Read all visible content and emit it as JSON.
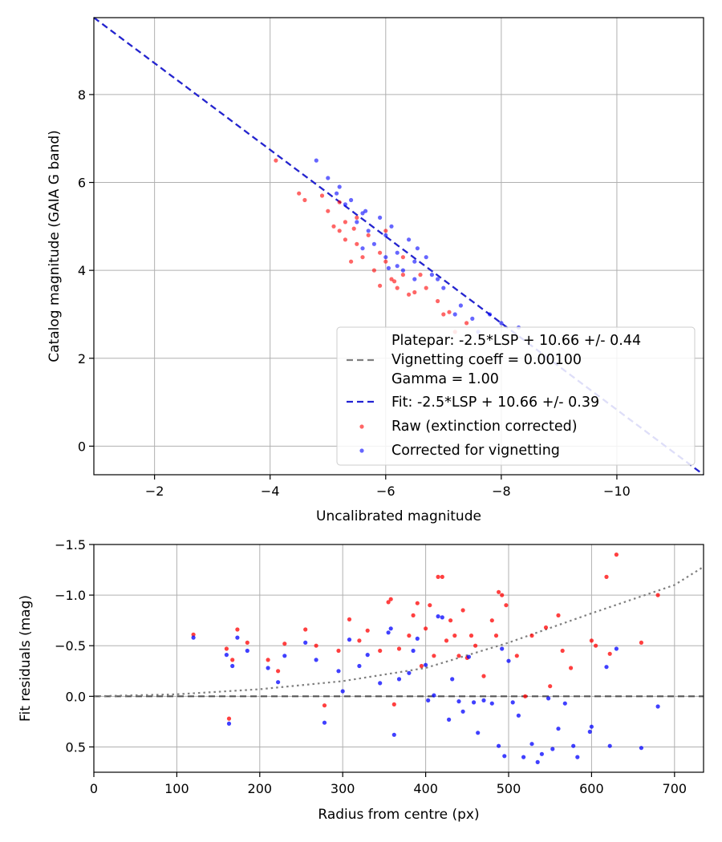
{
  "chart_data": [
    {
      "type": "scatter",
      "title": "",
      "xlabel": "Uncalibrated magnitude",
      "ylabel": "Catalog magnitude (GAIA G band)",
      "xlim": [
        -0.95,
        -11.5
      ],
      "ylim": [
        9.75,
        -0.65
      ],
      "x_inverted": true,
      "y_inverted": true,
      "xticks": [
        -2,
        -4,
        -6,
        -8,
        -10
      ],
      "xtick_labels": [
        "−2",
        "−4",
        "−6",
        "−8",
        "−10"
      ],
      "yticks": [
        0,
        2,
        4,
        6,
        8
      ],
      "ytick_labels": [
        "0",
        "2",
        "4",
        "6",
        "8"
      ],
      "grid": true,
      "legend_position": "lower-right",
      "lines": [
        {
          "name": "Platepar: -2.5*LSP + 10.66 +/- 0.44\nVignetting coeff = 0.00100\nGamma = 1.00",
          "style": "dashed",
          "color": "#7f7f7f",
          "x": [
            -0.95,
            -11.5
          ],
          "y": [
            9.75,
            -0.65
          ]
        },
        {
          "name": "Fit: -2.5*LSP + 10.66 +/- 0.39",
          "style": "dashed",
          "color": "#2323d4",
          "x": [
            -0.95,
            -11.5
          ],
          "y": [
            9.75,
            -0.65
          ]
        }
      ],
      "series": [
        {
          "name": "Raw (extinction corrected)",
          "color": "#ff0000",
          "points": [
            [
              -4.1,
              6.5
            ],
            [
              -4.5,
              5.75
            ],
            [
              -4.6,
              5.6
            ],
            [
              -4.9,
              5.7
            ],
            [
              -5.0,
              5.35
            ],
            [
              -5.2,
              4.9
            ],
            [
              -5.3,
              4.7
            ],
            [
              -5.4,
              4.2
            ],
            [
              -5.5,
              4.6
            ],
            [
              -5.6,
              4.3
            ],
            [
              -5.8,
              4.0
            ],
            [
              -5.9,
              3.65
            ],
            [
              -6.0,
              4.2
            ],
            [
              -6.1,
              3.8
            ],
            [
              -6.2,
              3.6
            ],
            [
              -6.3,
              3.9
            ],
            [
              -6.5,
              3.5
            ],
            [
              -6.7,
              3.6
            ],
            [
              -6.9,
              3.3
            ],
            [
              -7.0,
              3.0
            ],
            [
              -7.2,
              2.6
            ],
            [
              -7.4,
              2.8
            ],
            [
              -5.1,
              5.0
            ],
            [
              -5.3,
              5.1
            ],
            [
              -5.5,
              5.2
            ],
            [
              -5.7,
              4.8
            ],
            [
              -5.9,
              4.4
            ],
            [
              -6.0,
              4.9
            ],
            [
              -6.3,
              4.3
            ],
            [
              -6.6,
              3.9
            ],
            [
              -5.2,
              5.55
            ],
            [
              -5.45,
              4.95
            ],
            [
              -6.15,
              3.75
            ],
            [
              -6.4,
              3.45
            ],
            [
              -7.1,
              3.05
            ]
          ]
        },
        {
          "name": "Corrected for vignetting",
          "color": "#0000ff",
          "points": [
            [
              -4.8,
              6.5
            ],
            [
              -5.0,
              6.1
            ],
            [
              -5.2,
              5.9
            ],
            [
              -5.3,
              5.5
            ],
            [
              -5.5,
              5.1
            ],
            [
              -5.6,
              5.3
            ],
            [
              -5.7,
              4.9
            ],
            [
              -5.8,
              4.6
            ],
            [
              -5.9,
              5.2
            ],
            [
              -6.0,
              4.3
            ],
            [
              -6.1,
              5.0
            ],
            [
              -6.2,
              4.4
            ],
            [
              -6.3,
              4.0
            ],
            [
              -6.4,
              4.7
            ],
            [
              -6.5,
              4.2
            ],
            [
              -6.7,
              4.3
            ],
            [
              -6.8,
              3.9
            ],
            [
              -7.0,
              3.6
            ],
            [
              -7.3,
              3.2
            ],
            [
              -7.6,
              2.6
            ],
            [
              -7.8,
              3.0
            ],
            [
              -8.0,
              2.8
            ],
            [
              -8.3,
              2.7
            ],
            [
              -5.4,
              5.6
            ],
            [
              -5.6,
              4.5
            ],
            [
              -6.0,
              4.8
            ],
            [
              -6.2,
              4.1
            ],
            [
              -6.5,
              3.8
            ],
            [
              -6.9,
              3.8
            ],
            [
              -7.2,
              3.0
            ],
            [
              -5.15,
              5.75
            ],
            [
              -5.65,
              5.35
            ],
            [
              -6.05,
              4.05
            ],
            [
              -6.55,
              4.5
            ],
            [
              -7.5,
              2.9
            ]
          ]
        }
      ]
    },
    {
      "type": "scatter",
      "title": "",
      "xlabel": "Radius from centre (px)",
      "ylabel": "Fit residuals (mag)",
      "xlim": [
        0,
        735
      ],
      "ylim": [
        -1.5,
        0.75
      ],
      "xticks": [
        0,
        100,
        200,
        300,
        400,
        500,
        600,
        700
      ],
      "xtick_labels": [
        "0",
        "100",
        "200",
        "300",
        "400",
        "500",
        "600",
        "700"
      ],
      "yticks": [
        -1.5,
        -1.0,
        -0.5,
        0.0,
        0.5
      ],
      "ytick_labels": [
        "−1.5",
        "−1.0",
        "−0.5",
        "0.0",
        "0.5"
      ],
      "grid": true,
      "lines": [
        {
          "name": "zero",
          "style": "dashed",
          "color": "#555555",
          "x": [
            0,
            735
          ],
          "y": [
            0,
            0
          ]
        },
        {
          "name": "vignetting model",
          "style": "dotted",
          "color": "#7f7f7f",
          "x": [
            0,
            100,
            200,
            300,
            400,
            500,
            600,
            700,
            735
          ],
          "y": [
            0.0,
            -0.02,
            -0.07,
            -0.15,
            -0.28,
            -0.53,
            -0.82,
            -1.1,
            -1.28
          ]
        }
      ],
      "series": [
        {
          "name": "Raw (extinction corrected)",
          "color": "#ff0000",
          "points": [
            [
              120,
              -0.61
            ],
            [
              160,
              -0.47
            ],
            [
              163,
              0.22
            ],
            [
              167,
              -0.36
            ],
            [
              173,
              -0.66
            ],
            [
              185,
              -0.53
            ],
            [
              210,
              -0.36
            ],
            [
              222,
              -0.25
            ],
            [
              230,
              -0.52
            ],
            [
              255,
              -0.66
            ],
            [
              268,
              -0.5
            ],
            [
              278,
              0.09
            ],
            [
              295,
              -0.45
            ],
            [
              308,
              -0.76
            ],
            [
              320,
              -0.55
            ],
            [
              330,
              -0.65
            ],
            [
              345,
              -0.45
            ],
            [
              355,
              -0.93
            ],
            [
              358,
              -0.96
            ],
            [
              362,
              0.08
            ],
            [
              368,
              -0.47
            ],
            [
              380,
              -0.6
            ],
            [
              385,
              -0.8
            ],
            [
              390,
              -0.92
            ],
            [
              395,
              -0.3
            ],
            [
              400,
              -0.67
            ],
            [
              405,
              -0.9
            ],
            [
              410,
              -0.4
            ],
            [
              415,
              -1.18
            ],
            [
              420,
              -1.18
            ],
            [
              425,
              -0.55
            ],
            [
              430,
              -0.75
            ],
            [
              435,
              -0.6
            ],
            [
              440,
              -0.4
            ],
            [
              445,
              -0.85
            ],
            [
              450,
              -0.38
            ],
            [
              455,
              -0.6
            ],
            [
              460,
              -0.5
            ],
            [
              470,
              -0.2
            ],
            [
              480,
              -0.75
            ],
            [
              485,
              -0.6
            ],
            [
              488,
              -1.03
            ],
            [
              492,
              -1.0
            ],
            [
              497,
              -0.9
            ],
            [
              510,
              -0.4
            ],
            [
              520,
              -0.0
            ],
            [
              528,
              -0.6
            ],
            [
              545,
              -0.68
            ],
            [
              550,
              -0.1
            ],
            [
              560,
              -0.8
            ],
            [
              565,
              -0.45
            ],
            [
              575,
              -0.28
            ],
            [
              600,
              -0.55
            ],
            [
              605,
              -0.5
            ],
            [
              618,
              -1.18
            ],
            [
              622,
              -0.42
            ],
            [
              630,
              -1.4
            ],
            [
              660,
              -0.53
            ],
            [
              680,
              -1.0
            ]
          ]
        },
        {
          "name": "Corrected for vignetting",
          "color": "#0000ff",
          "points": [
            [
              120,
              -0.58
            ],
            [
              160,
              -0.41
            ],
            [
              163,
              0.27
            ],
            [
              167,
              -0.3
            ],
            [
              173,
              -0.58
            ],
            [
              185,
              -0.45
            ],
            [
              210,
              -0.28
            ],
            [
              222,
              -0.14
            ],
            [
              230,
              -0.4
            ],
            [
              255,
              -0.53
            ],
            [
              268,
              -0.36
            ],
            [
              278,
              0.26
            ],
            [
              295,
              -0.25
            ],
            [
              300,
              -0.05
            ],
            [
              308,
              -0.56
            ],
            [
              320,
              -0.3
            ],
            [
              330,
              -0.41
            ],
            [
              345,
              -0.13
            ],
            [
              355,
              -0.63
            ],
            [
              358,
              -0.67
            ],
            [
              362,
              0.38
            ],
            [
              368,
              -0.17
            ],
            [
              380,
              -0.23
            ],
            [
              385,
              -0.45
            ],
            [
              390,
              -0.57
            ],
            [
              400,
              -0.31
            ],
            [
              403,
              0.04
            ],
            [
              410,
              -0.01
            ],
            [
              415,
              -0.79
            ],
            [
              420,
              -0.78
            ],
            [
              428,
              0.23
            ],
            [
              432,
              -0.17
            ],
            [
              440,
              0.05
            ],
            [
              445,
              0.15
            ],
            [
              452,
              -0.39
            ],
            [
              458,
              0.06
            ],
            [
              463,
              0.36
            ],
            [
              470,
              0.04
            ],
            [
              480,
              0.07
            ],
            [
              488,
              0.49
            ],
            [
              492,
              -0.47
            ],
            [
              495,
              0.59
            ],
            [
              500,
              -0.35
            ],
            [
              505,
              0.06
            ],
            [
              512,
              0.19
            ],
            [
              518,
              0.6
            ],
            [
              528,
              0.47
            ],
            [
              535,
              0.65
            ],
            [
              540,
              0.57
            ],
            [
              548,
              0.02
            ],
            [
              553,
              0.52
            ],
            [
              560,
              0.32
            ],
            [
              568,
              0.07
            ],
            [
              578,
              0.49
            ],
            [
              583,
              0.6
            ],
            [
              598,
              0.35
            ],
            [
              600,
              0.3
            ],
            [
              618,
              -0.29
            ],
            [
              622,
              0.49
            ],
            [
              630,
              -0.47
            ],
            [
              660,
              0.51
            ],
            [
              680,
              0.1
            ]
          ]
        }
      ]
    }
  ]
}
